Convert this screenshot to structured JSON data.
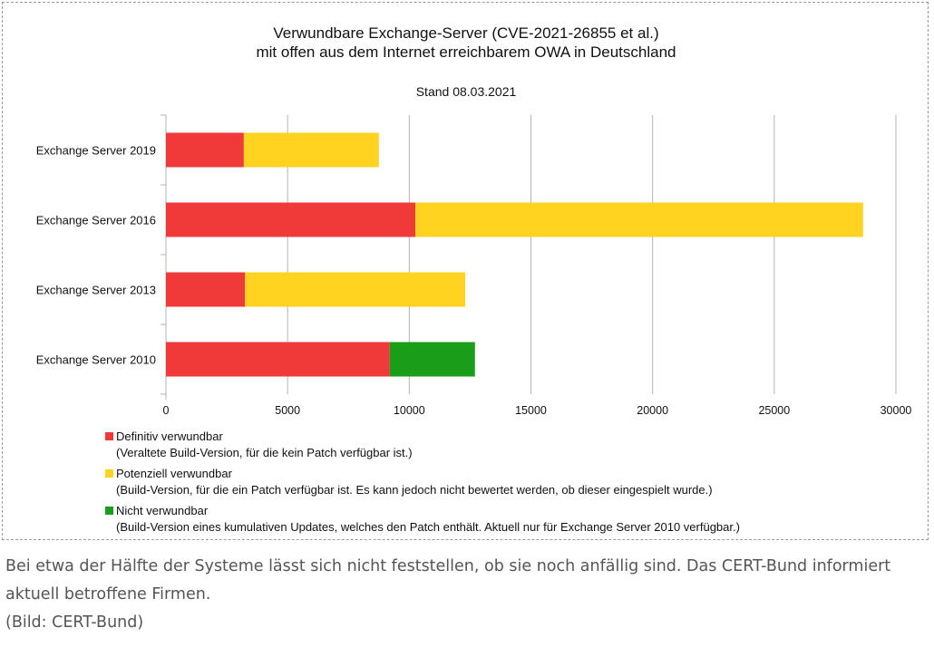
{
  "chart_data": {
    "type": "bar",
    "orientation": "horizontal",
    "stacked": true,
    "title": "Verwundbare Exchange-Server (CVE-2021-26855 et al.)",
    "title_line2": "mit offen aus dem Internet erreichbarem OWA in Deutschland",
    "subtitle": "Stand 08.03.2021",
    "categories": [
      "Exchange Server 2019",
      "Exchange Server 2016",
      "Exchange Server 2013",
      "Exchange Server 2010"
    ],
    "series": [
      {
        "name": "Definitiv verwundbar",
        "note": "(Veraltete Build-Version, für die kein Patch verfügbar ist.)",
        "color": "#f03a3a",
        "values": [
          3200,
          10250,
          3250,
          9200
        ]
      },
      {
        "name": "Potenziell verwundbar",
        "note": "(Build-Version, für die ein Patch verfügbar ist. Es kann jedoch nicht bewertet werden, ob dieser eingespielt wurde.)",
        "color": "#ffd320",
        "values": [
          5550,
          18400,
          9050,
          0
        ]
      },
      {
        "name": "Nicht verwundbar",
        "note": "(Build-Version eines kumulativen Updates, welches den Patch enthält. Aktuell nur für Exchange Server 2010 verfügbar.)",
        "color": "#1a9e1a",
        "values": [
          0,
          0,
          0,
          3500
        ]
      }
    ],
    "xlim": [
      0,
      30000
    ],
    "xticks": [
      "0",
      "5000",
      "10000",
      "15000",
      "20000",
      "25000",
      "30000"
    ],
    "grid": true,
    "legend_position": "bottom-left"
  },
  "caption": {
    "text": "Bei etwa der Hälfte der Systeme lässt sich nicht feststellen, ob sie noch anfällig sind. Das CERT-Bund informiert aktuell betroffene Firmen.",
    "credit": "(Bild: CERT-Bund)"
  }
}
